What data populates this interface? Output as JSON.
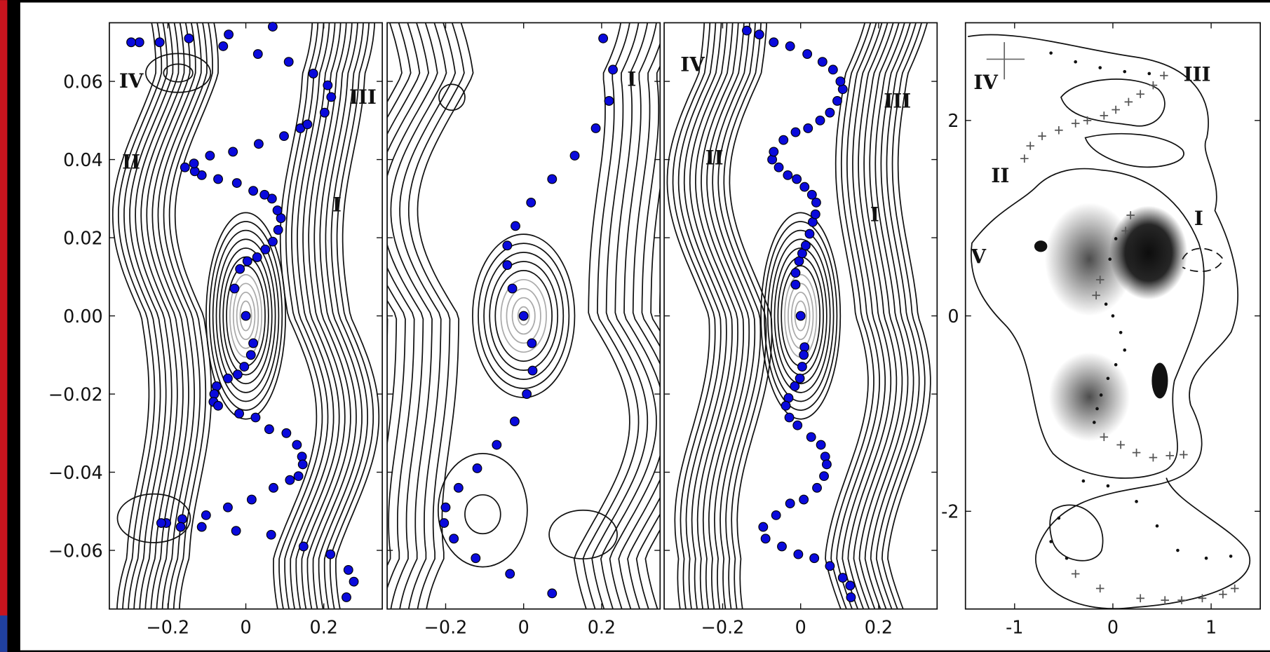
{
  "chart_data": [
    {
      "type": "scatter",
      "xlim": [
        -0.35,
        0.35
      ],
      "ylim": [
        -0.075,
        0.075
      ],
      "xticks": [
        {
          "value": -0.2,
          "label": "−0.2"
        },
        0,
        0.2
      ],
      "yticks": [
        {
          "value": -0.06,
          "label": "−0.06"
        },
        {
          "value": -0.04,
          "label": "−0.04"
        },
        {
          "value": -0.02,
          "label": "−0.02"
        },
        {
          "value": 0,
          "label": "0.00"
        },
        0.02,
        0.04,
        0.06
      ],
      "annotations": [
        "IV",
        "III",
        "II",
        "I"
      ],
      "series": [
        {
          "color": "#0a0adc",
          "x": [
            0,
            -0.029,
            -0.015,
            0.004,
            0.029,
            0.05,
            0.069,
            0.083,
            0.09,
            0.081,
            0.067,
            0.048,
            0.019,
            -0.023,
            -0.071,
            -0.113,
            -0.131,
            -0.156,
            -0.133,
            -0.092,
            -0.033,
            0.033,
            0.098,
            0.14,
            0.158,
            0.202,
            0.219,
            0.21,
            0.173,
            0.11,
            0.031,
            0.069,
            -0.044,
            -0.058,
            -0.146,
            -0.221,
            -0.273,
            -0.294,
            0.019,
            0.013,
            -0.004,
            -0.021,
            -0.046,
            -0.075,
            -0.081,
            -0.083,
            -0.071,
            -0.017,
            0.025,
            0.06,
            0.104,
            0.131,
            0.144,
            0.146,
            0.135,
            0.113,
            0.071,
            0.015,
            -0.046,
            -0.025,
            0.065,
            0.148,
            0.217,
            0.263,
            0.277,
            0.258,
            -0.102,
            -0.113,
            -0.163,
            -0.167,
            -0.204,
            -0.217
          ],
          "y": [
            0,
            0.007,
            0.012,
            0.014,
            0.015,
            0.017,
            0.019,
            0.022,
            0.025,
            0.027,
            0.03,
            0.031,
            0.032,
            0.034,
            0.035,
            0.036,
            0.037,
            0.038,
            0.039,
            0.041,
            0.042,
            0.044,
            0.046,
            0.048,
            0.049,
            0.052,
            0.056,
            0.059,
            0.062,
            0.065,
            0.067,
            0.074,
            0.072,
            0.069,
            0.071,
            0.07,
            0.07,
            0.07,
            -0.007,
            -0.01,
            -0.013,
            -0.015,
            -0.016,
            -0.018,
            -0.02,
            -0.022,
            -0.023,
            -0.025,
            -0.026,
            -0.029,
            -0.03,
            -0.033,
            -0.036,
            -0.038,
            -0.041,
            -0.042,
            -0.044,
            -0.047,
            -0.049,
            -0.055,
            -0.056,
            -0.059,
            -0.061,
            -0.065,
            -0.068,
            -0.072,
            -0.051,
            -0.054,
            -0.052,
            -0.054,
            -0.053,
            -0.053
          ]
        }
      ]
    },
    {
      "type": "scatter",
      "xlim": [
        -0.35,
        0.35
      ],
      "ylim": [
        -0.075,
        0.075
      ],
      "xticks": [
        {
          "value": -0.2,
          "label": "−0.2"
        },
        0,
        0.2
      ],
      "yticks": [
        -0.06,
        -0.04,
        -0.02,
        0,
        0.02,
        0.04,
        0.06
      ],
      "annotations": [
        "I"
      ],
      "series": [
        {
          "color": "#0a0adc",
          "x": [
            0,
            -0.029,
            -0.042,
            -0.042,
            -0.021,
            0.019,
            0.073,
            0.131,
            0.185,
            0.219,
            0.229,
            0.204,
            0.021,
            0.023,
            0.008,
            -0.023,
            -0.069,
            -0.119,
            -0.167,
            -0.2,
            -0.204,
            -0.179,
            -0.123,
            -0.035,
            0.073
          ],
          "y": [
            0,
            0.007,
            0.013,
            0.018,
            0.023,
            0.029,
            0.035,
            0.041,
            0.048,
            0.055,
            0.063,
            0.071,
            -0.007,
            -0.014,
            -0.02,
            -0.027,
            -0.033,
            -0.039,
            -0.044,
            -0.049,
            -0.053,
            -0.057,
            -0.062,
            -0.066,
            -0.071
          ]
        }
      ]
    },
    {
      "type": "scatter",
      "xlim": [
        -0.35,
        0.35
      ],
      "ylim": [
        -0.075,
        0.075
      ],
      "xticks": [
        {
          "value": -0.2,
          "label": "−0.2"
        },
        0,
        0.2
      ],
      "yticks": [
        -0.06,
        -0.04,
        -0.02,
        0,
        0.02,
        0.04,
        0.06
      ],
      "annotations": [
        "IV",
        "III",
        "II",
        "I"
      ],
      "series": [
        {
          "color": "#0a0adc",
          "x": [
            0,
            -0.013,
            -0.013,
            -0.004,
            0.004,
            0.013,
            0.023,
            0.031,
            0.038,
            0.04,
            0.029,
            0.01,
            -0.01,
            -0.033,
            -0.056,
            -0.073,
            -0.069,
            -0.044,
            -0.013,
            0.019,
            0.05,
            0.075,
            0.094,
            0.108,
            0.102,
            0.083,
            0.056,
            0.017,
            -0.027,
            -0.069,
            -0.106,
            -0.138,
            0.01,
            0.008,
            0.004,
            -0.002,
            -0.015,
            -0.031,
            -0.038,
            -0.029,
            -0.008,
            0.027,
            0.052,
            0.063,
            0.067,
            0.06,
            0.042,
            0.008,
            -0.027,
            -0.063,
            -0.096,
            -0.09,
            -0.048,
            -0.006,
            0.035,
            0.075,
            0.108,
            0.127,
            0.129
          ],
          "y": [
            0,
            0.008,
            0.011,
            0.014,
            0.016,
            0.018,
            0.021,
            0.024,
            0.026,
            0.029,
            0.031,
            0.033,
            0.035,
            0.036,
            0.038,
            0.04,
            0.042,
            0.045,
            0.047,
            0.048,
            0.05,
            0.052,
            0.055,
            0.058,
            0.06,
            0.063,
            0.065,
            0.067,
            0.069,
            0.07,
            0.072,
            0.073,
            -0.008,
            -0.01,
            -0.013,
            -0.016,
            -0.018,
            -0.021,
            -0.023,
            -0.026,
            -0.028,
            -0.031,
            -0.033,
            -0.036,
            -0.038,
            -0.041,
            -0.044,
            -0.047,
            -0.048,
            -0.051,
            -0.054,
            -0.057,
            -0.059,
            -0.061,
            -0.062,
            -0.064,
            -0.067,
            -0.069,
            -0.072
          ]
        }
      ]
    },
    {
      "type": "scatter",
      "xlim": [
        -1.5,
        1.5
      ],
      "ylim": [
        -3,
        3
      ],
      "xticks": [
        -1,
        0,
        1
      ],
      "yticks": [
        -2,
        0,
        2
      ],
      "annotations": [
        "IV",
        "III",
        "II",
        "I",
        "V"
      ],
      "series": [
        {
          "color": "#555555",
          "marker": "+",
          "x": [
            0.52,
            0.41,
            0.28,
            0.16,
            0.03,
            -0.09,
            -0.26,
            -0.38,
            -0.55,
            -0.72,
            -0.84,
            -0.9,
            0.18,
            0.13,
            -0.13,
            -0.17,
            -0.09,
            0.08,
            0.24,
            0.41,
            0.58,
            0.72,
            -0.38,
            -0.13,
            0.28,
            0.53,
            0.7,
            0.91,
            1.12,
            1.24
          ],
          "y": [
            2.46,
            2.36,
            2.27,
            2.19,
            2.11,
            2.05,
            2.0,
            1.97,
            1.9,
            1.84,
            1.74,
            1.61,
            1.03,
            0.87,
            0.37,
            0.21,
            -1.24,
            -1.32,
            -1.4,
            -1.45,
            -1.43,
            -1.42,
            -2.64,
            -2.79,
            -2.89,
            -2.91,
            -2.91,
            -2.89,
            -2.85,
            -2.79
          ]
        },
        {
          "color": "#111111",
          "marker": "o",
          "x": [
            -0.63,
            -0.38,
            -0.13,
            0.12,
            0.37,
            0.03,
            -0.03,
            -0.07,
            0,
            0.08,
            0.12,
            0.03,
            -0.05,
            -0.12,
            -0.16,
            -0.19,
            -0.55,
            -0.63,
            -0.47,
            -0.3,
            -0.05,
            0.24,
            0.45,
            0.66,
            0.95,
            1.2
          ],
          "y": [
            2.69,
            2.6,
            2.54,
            2.5,
            2.48,
            0.79,
            0.58,
            0.12,
            0,
            -0.17,
            -0.35,
            -0.5,
            -0.64,
            -0.81,
            -0.95,
            -1.09,
            -2.07,
            -2.31,
            -2.48,
            -1.69,
            -1.74,
            -1.9,
            -2.15,
            -2.4,
            -2.48,
            -2.46
          ]
        }
      ]
    }
  ]
}
